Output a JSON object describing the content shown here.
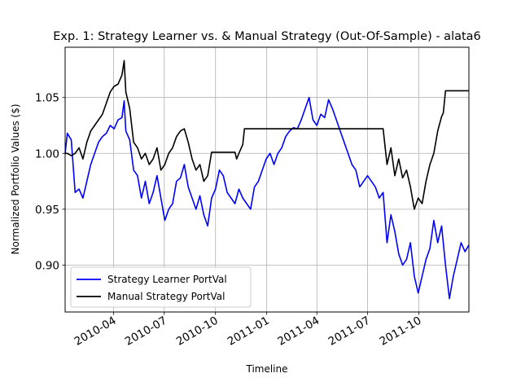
{
  "chart_data": {
    "type": "line",
    "title": "Exp. 1: Strategy Learner vs. & Manual Strategy (Out-Of-Sample) - alata6",
    "xlabel": "Timeline",
    "ylabel": "Normalized Portfolio Values ($)",
    "xlim": [
      "2010-01-04",
      "2011-12-30"
    ],
    "ylim": [
      0.858,
      1.095
    ],
    "grid": true,
    "legend_position": "lower-left",
    "x_ticks": [
      {
        "date": "2010-04-01",
        "label": "2010-04"
      },
      {
        "date": "2010-07-01",
        "label": "2010-07"
      },
      {
        "date": "2010-10-01",
        "label": "2010-10"
      },
      {
        "date": "2011-01-01",
        "label": "2011-01"
      },
      {
        "date": "2011-04-01",
        "label": "2011-04"
      },
      {
        "date": "2011-07-01",
        "label": "2011-07"
      },
      {
        "date": "2011-10-01",
        "label": "2011-10"
      }
    ],
    "y_ticks": [
      0.9,
      0.95,
      1.0,
      1.05
    ],
    "y_tick_labels": [
      "0.90",
      "0.95",
      "1.00",
      "1.05"
    ],
    "series": [
      {
        "name": "Strategy Learner PortVal",
        "color": "#0000ff",
        "points": [
          [
            "2010-01-04",
            1.0
          ],
          [
            "2010-01-08",
            1.018
          ],
          [
            "2010-01-15",
            1.012
          ],
          [
            "2010-01-22",
            0.965
          ],
          [
            "2010-01-29",
            0.968
          ],
          [
            "2010-02-05",
            0.96
          ],
          [
            "2010-02-12",
            0.975
          ],
          [
            "2010-02-19",
            0.99
          ],
          [
            "2010-02-26",
            1.0
          ],
          [
            "2010-03-05",
            1.01
          ],
          [
            "2010-03-12",
            1.015
          ],
          [
            "2010-03-19",
            1.018
          ],
          [
            "2010-03-26",
            1.025
          ],
          [
            "2010-04-02",
            1.022
          ],
          [
            "2010-04-09",
            1.03
          ],
          [
            "2010-04-16",
            1.032
          ],
          [
            "2010-04-20",
            1.047
          ],
          [
            "2010-04-23",
            1.02
          ],
          [
            "2010-04-30",
            1.012
          ],
          [
            "2010-05-07",
            0.985
          ],
          [
            "2010-05-14",
            0.98
          ],
          [
            "2010-05-21",
            0.96
          ],
          [
            "2010-05-28",
            0.975
          ],
          [
            "2010-06-04",
            0.955
          ],
          [
            "2010-06-11",
            0.965
          ],
          [
            "2010-06-18",
            0.98
          ],
          [
            "2010-06-25",
            0.96
          ],
          [
            "2010-07-02",
            0.94
          ],
          [
            "2010-07-09",
            0.95
          ],
          [
            "2010-07-16",
            0.955
          ],
          [
            "2010-07-23",
            0.975
          ],
          [
            "2010-07-30",
            0.978
          ],
          [
            "2010-08-06",
            0.99
          ],
          [
            "2010-08-13",
            0.97
          ],
          [
            "2010-08-20",
            0.96
          ],
          [
            "2010-08-27",
            0.95
          ],
          [
            "2010-09-03",
            0.962
          ],
          [
            "2010-09-10",
            0.945
          ],
          [
            "2010-09-17",
            0.935
          ],
          [
            "2010-09-24",
            0.96
          ],
          [
            "2010-10-01",
            0.968
          ],
          [
            "2010-10-08",
            0.985
          ],
          [
            "2010-10-15",
            0.98
          ],
          [
            "2010-10-22",
            0.965
          ],
          [
            "2010-10-29",
            0.96
          ],
          [
            "2010-11-05",
            0.955
          ],
          [
            "2010-11-12",
            0.968
          ],
          [
            "2010-11-19",
            0.96
          ],
          [
            "2010-11-26",
            0.955
          ],
          [
            "2010-12-03",
            0.95
          ],
          [
            "2010-12-10",
            0.97
          ],
          [
            "2010-12-17",
            0.975
          ],
          [
            "2010-12-24",
            0.985
          ],
          [
            "2010-12-31",
            0.995
          ],
          [
            "2011-01-07",
            1.0
          ],
          [
            "2011-01-14",
            0.99
          ],
          [
            "2011-01-21",
            1.0
          ],
          [
            "2011-01-28",
            1.005
          ],
          [
            "2011-02-04",
            1.015
          ],
          [
            "2011-02-11",
            1.02
          ],
          [
            "2011-02-18",
            1.023
          ],
          [
            "2011-02-25",
            1.022
          ],
          [
            "2011-03-04",
            1.03
          ],
          [
            "2011-03-11",
            1.04
          ],
          [
            "2011-03-18",
            1.05
          ],
          [
            "2011-03-25",
            1.03
          ],
          [
            "2011-04-01",
            1.025
          ],
          [
            "2011-04-08",
            1.035
          ],
          [
            "2011-04-15",
            1.032
          ],
          [
            "2011-04-22",
            1.048
          ],
          [
            "2011-04-29",
            1.04
          ],
          [
            "2011-05-06",
            1.03
          ],
          [
            "2011-05-13",
            1.02
          ],
          [
            "2011-05-20",
            1.01
          ],
          [
            "2011-05-27",
            1.0
          ],
          [
            "2011-06-03",
            0.99
          ],
          [
            "2011-06-10",
            0.985
          ],
          [
            "2011-06-17",
            0.97
          ],
          [
            "2011-06-24",
            0.975
          ],
          [
            "2011-07-01",
            0.98
          ],
          [
            "2011-07-08",
            0.975
          ],
          [
            "2011-07-15",
            0.97
          ],
          [
            "2011-07-22",
            0.96
          ],
          [
            "2011-07-29",
            0.965
          ],
          [
            "2011-08-05",
            0.92
          ],
          [
            "2011-08-12",
            0.945
          ],
          [
            "2011-08-19",
            0.93
          ],
          [
            "2011-08-26",
            0.91
          ],
          [
            "2011-09-02",
            0.9
          ],
          [
            "2011-09-09",
            0.905
          ],
          [
            "2011-09-16",
            0.92
          ],
          [
            "2011-09-23",
            0.89
          ],
          [
            "2011-09-30",
            0.875
          ],
          [
            "2011-10-07",
            0.89
          ],
          [
            "2011-10-14",
            0.905
          ],
          [
            "2011-10-21",
            0.915
          ],
          [
            "2011-10-28",
            0.94
          ],
          [
            "2011-11-04",
            0.92
          ],
          [
            "2011-11-11",
            0.935
          ],
          [
            "2011-11-18",
            0.9
          ],
          [
            "2011-11-25",
            0.87
          ],
          [
            "2011-12-02",
            0.89
          ],
          [
            "2011-12-09",
            0.905
          ],
          [
            "2011-12-16",
            0.92
          ],
          [
            "2011-12-23",
            0.912
          ],
          [
            "2011-12-30",
            0.918
          ]
        ]
      },
      {
        "name": "Manual Strategy PortVal",
        "color": "#000000",
        "points": [
          [
            "2010-01-04",
            1.0
          ],
          [
            "2010-01-08",
            1.0
          ],
          [
            "2010-01-15",
            0.998
          ],
          [
            "2010-01-22",
            1.0
          ],
          [
            "2010-01-29",
            1.005
          ],
          [
            "2010-02-05",
            0.995
          ],
          [
            "2010-02-12",
            1.01
          ],
          [
            "2010-02-19",
            1.02
          ],
          [
            "2010-02-26",
            1.025
          ],
          [
            "2010-03-05",
            1.03
          ],
          [
            "2010-03-12",
            1.035
          ],
          [
            "2010-03-19",
            1.045
          ],
          [
            "2010-03-26",
            1.055
          ],
          [
            "2010-04-02",
            1.06
          ],
          [
            "2010-04-09",
            1.062
          ],
          [
            "2010-04-16",
            1.07
          ],
          [
            "2010-04-20",
            1.083
          ],
          [
            "2010-04-23",
            1.055
          ],
          [
            "2010-04-30",
            1.04
          ],
          [
            "2010-05-07",
            1.01
          ],
          [
            "2010-05-14",
            1.005
          ],
          [
            "2010-05-21",
            0.995
          ],
          [
            "2010-05-28",
            1.0
          ],
          [
            "2010-06-04",
            0.99
          ],
          [
            "2010-06-11",
            0.995
          ],
          [
            "2010-06-18",
            1.005
          ],
          [
            "2010-06-25",
            0.985
          ],
          [
            "2010-07-02",
            0.99
          ],
          [
            "2010-07-09",
            1.0
          ],
          [
            "2010-07-16",
            1.005
          ],
          [
            "2010-07-23",
            1.015
          ],
          [
            "2010-07-30",
            1.02
          ],
          [
            "2010-08-06",
            1.022
          ],
          [
            "2010-08-13",
            1.01
          ],
          [
            "2010-08-20",
            0.995
          ],
          [
            "2010-08-27",
            0.985
          ],
          [
            "2010-09-03",
            0.99
          ],
          [
            "2010-09-10",
            0.975
          ],
          [
            "2010-09-17",
            0.98
          ],
          [
            "2010-09-24",
            1.001
          ],
          [
            "2010-10-01",
            1.001
          ],
          [
            "2010-11-05",
            1.001
          ],
          [
            "2010-11-08",
            0.995
          ],
          [
            "2010-11-12",
            1.0
          ],
          [
            "2010-11-19",
            1.008
          ],
          [
            "2010-11-22",
            1.022
          ],
          [
            "2011-07-29",
            1.022
          ],
          [
            "2011-08-05",
            0.99
          ],
          [
            "2011-08-12",
            1.005
          ],
          [
            "2011-08-19",
            0.98
          ],
          [
            "2011-08-26",
            0.995
          ],
          [
            "2011-09-02",
            0.978
          ],
          [
            "2011-09-09",
            0.985
          ],
          [
            "2011-09-16",
            0.97
          ],
          [
            "2011-09-23",
            0.95
          ],
          [
            "2011-09-30",
            0.96
          ],
          [
            "2011-10-07",
            0.955
          ],
          [
            "2011-10-14",
            0.975
          ],
          [
            "2011-10-21",
            0.99
          ],
          [
            "2011-10-28",
            1.0
          ],
          [
            "2011-11-04",
            1.02
          ],
          [
            "2011-11-11",
            1.033
          ],
          [
            "2011-11-14",
            1.036
          ],
          [
            "2011-11-18",
            1.056
          ],
          [
            "2011-12-30",
            1.056
          ]
        ]
      }
    ]
  }
}
